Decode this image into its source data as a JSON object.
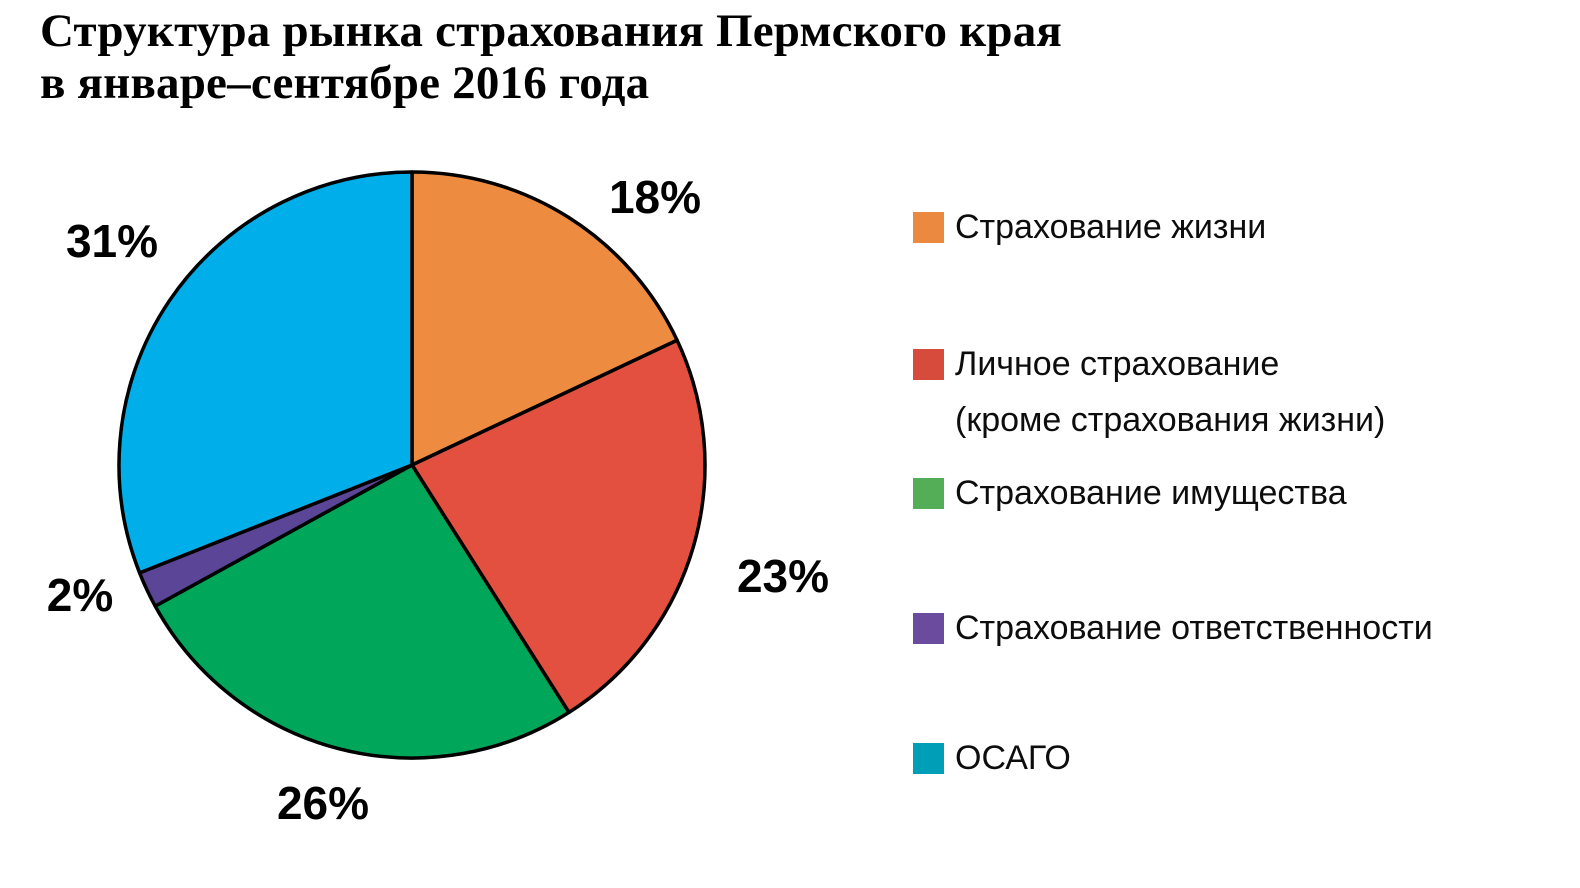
{
  "title": {
    "line1": "Структура рынка страхования Пермского края",
    "line2": "в январе–сентябре 2016 года"
  },
  "chart_data": {
    "type": "pie",
    "title": "Структура рынка страхования Пермского края в январе–сентябре 2016 года",
    "start_angle_deg": 0,
    "direction": "clockwise",
    "units": "percent",
    "outline_color": "#000000",
    "background_color": "#ffffff",
    "legend_position": "right",
    "slices": [
      {
        "label": "Страхование жизни",
        "value_pct": 18,
        "color": "#ED8B40",
        "data_label": "18%"
      },
      {
        "label": "Личное страхование (кроме страхования жизни)",
        "value_pct": 23,
        "color": "#E4503F",
        "data_label": "23%"
      },
      {
        "label": "Страхование имущества",
        "value_pct": 26,
        "color": "#00A65A",
        "data_label": "26%"
      },
      {
        "label": "Страхование ответственности",
        "value_pct": 2,
        "color": "#5B4596",
        "data_label": "2%"
      },
      {
        "label": "ОСАГО",
        "value_pct": 31,
        "color": "#00AEEA",
        "data_label": "31%"
      }
    ]
  },
  "legend": {
    "items": [
      {
        "label": "Страхование жизни",
        "label_line2": "",
        "swatch_color": "#EC8940"
      },
      {
        "label": "Личное страхование",
        "label_line2": "(кроме страхования жизни)",
        "swatch_color": "#D64B3C"
      },
      {
        "label": "Страхование имущества",
        "label_line2": "",
        "swatch_color": "#54AE58"
      },
      {
        "label": "Страхование ответственности",
        "label_line2": "",
        "swatch_color": "#6A4B9E"
      },
      {
        "label": "ОСАГО",
        "label_line2": "",
        "swatch_color": "#009FB8"
      }
    ]
  }
}
